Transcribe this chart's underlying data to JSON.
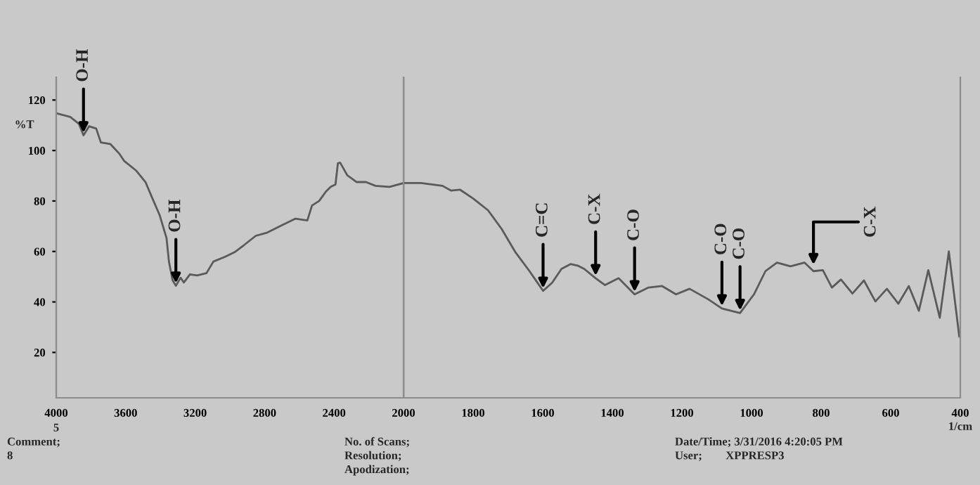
{
  "chart_data": [
    {
      "type": "line",
      "xlabel": null,
      "ylabel": "%T",
      "xlim": [
        4000,
        2000
      ],
      "xticks": [
        4000,
        3600,
        3200,
        2800,
        2400,
        {
          "value": 2000,
          "label": null
        }
      ],
      "ylim": [
        2,
        129
      ],
      "yticks": [
        20,
        40,
        60,
        80,
        100,
        120
      ],
      "legend": false,
      "marker": "none",
      "line_style": "solid",
      "series": [
        {
          "color": "#5a5a5a",
          "x": [
            4000,
            3919,
            3870,
            3843,
            3811,
            3770,
            3743,
            3689,
            3635,
            3608,
            3541,
            3486,
            3446,
            3405,
            3365,
            3351,
            3330,
            3311,
            3284,
            3265,
            3230,
            3189,
            3135,
            3095,
            3027,
            2973,
            2919,
            2851,
            2784,
            2703,
            2622,
            2554,
            2527,
            2486,
            2446,
            2419,
            2392,
            2378,
            2365,
            2324,
            2270,
            2216,
            2162,
            2081,
            2000
          ],
          "values": [
            114.8,
            113.3,
            110.6,
            106,
            109.6,
            108.7,
            103.2,
            102.6,
            98.6,
            95.8,
            92.1,
            87.5,
            81,
            74.5,
            65.3,
            56,
            48.6,
            46.4,
            49.6,
            47.7,
            50.9,
            50.5,
            51.4,
            56,
            57.9,
            59.7,
            62.5,
            66.2,
            67.5,
            70.3,
            73,
            72.3,
            78.2,
            80,
            83.8,
            85.6,
            86.5,
            94.9,
            95.2,
            90.2,
            87.5,
            87.5,
            86,
            85.6,
            87.1
          ]
        }
      ],
      "annotations": [
        {
          "text": "O-H",
          "x": 3843,
          "y": 106
        },
        {
          "text": "O-H",
          "x": 3311,
          "y": 46.4
        },
        "5",
        "Comment;\n8",
        "No. of Scans;\nResolution;\nApodization;",
        "Date/Time; 3/31/2016 4:20:05 PM\nUser;        XPPRESP3"
      ]
    },
    {
      "type": "line",
      "xlabel": "1/cm",
      "tick_labels": "x",
      "xlim": [
        2000,
        400
      ],
      "xticks": [
        2000,
        1800,
        1600,
        1400,
        1200,
        1000,
        800,
        600,
        400
      ],
      "ylim": [
        2,
        129
      ],
      "legend": false,
      "ref_lines": [
        {
          "axis": "x",
          "value": 2000,
          "color": "#8c8c8c"
        }
      ],
      "marker": "none",
      "line_style": "solid",
      "series": [
        {
          "color": "#5a5a5a",
          "x": [
            2000,
            1950,
            1888,
            1863,
            1838,
            1800,
            1757,
            1718,
            1678,
            1638,
            1599,
            1573,
            1546,
            1520,
            1500,
            1481,
            1448,
            1421,
            1382,
            1336,
            1296,
            1257,
            1217,
            1178,
            1125,
            1085,
            1033,
            993,
            960,
            927,
            888,
            848,
            822,
            795,
            769,
            743,
            710,
            677,
            644,
            611,
            578,
            548,
            519,
            492,
            459,
            433,
            403
          ],
          "values": [
            87.1,
            87.1,
            86,
            84.1,
            84.5,
            81,
            76.3,
            68.9,
            59.6,
            52.2,
            44.4,
            47.6,
            53.1,
            55,
            54.4,
            53.1,
            49.4,
            46.7,
            49.4,
            43,
            45.7,
            46.3,
            43,
            45.2,
            41.1,
            37.4,
            35.6,
            43,
            52.2,
            55.6,
            54.1,
            55.6,
            52.2,
            52.6,
            45.7,
            48.9,
            43.3,
            48.5,
            40.2,
            45.2,
            39.3,
            46.3,
            36.5,
            52.6,
            33.7,
            60,
            26.3
          ]
        }
      ],
      "annotations": [
        {
          "text": "C=C",
          "x": 1599,
          "y": 44.4
        },
        {
          "text": "C-X",
          "x": 1448,
          "y": 49.4
        },
        {
          "text": "C-O",
          "x": 1336,
          "y": 43
        },
        {
          "text": "C-O",
          "x": 1085,
          "y": 37.4
        },
        {
          "text": "C-O",
          "x": 1033,
          "y": 35.6
        },
        {
          "text": "C-X",
          "x": 822,
          "y": 52.2
        }
      ]
    }
  ]
}
